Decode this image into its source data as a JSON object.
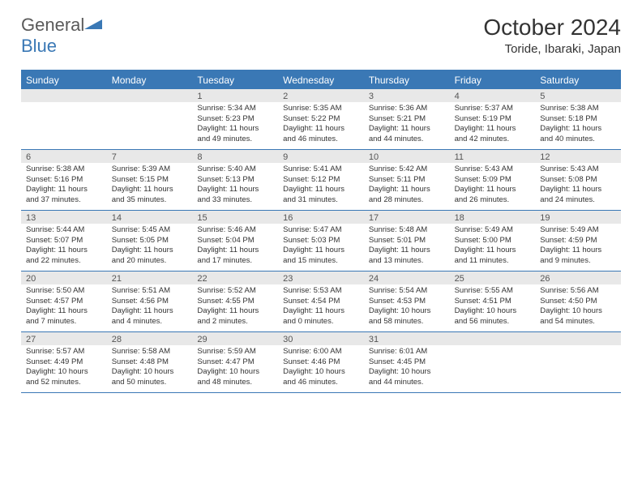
{
  "logo": {
    "word1": "General",
    "word2": "Blue"
  },
  "title": "October 2024",
  "location": "Toride, Ibaraki, Japan",
  "dayNames": [
    "Sunday",
    "Monday",
    "Tuesday",
    "Wednesday",
    "Thursday",
    "Friday",
    "Saturday"
  ],
  "colors": {
    "headerBlue": "#3a78b5",
    "rowGray": "#e8e8e8",
    "text": "#333333",
    "logoGray": "#5a5a5a"
  },
  "layout": {
    "startDayOfWeek": 2,
    "daysInMonth": 31,
    "cols": 7,
    "rows": 5
  },
  "typography": {
    "monthTitleSize": 28,
    "locationSize": 15,
    "dayHeaderSize": 12,
    "dayNumSize": 11,
    "bodySize": 9.5
  },
  "labels": {
    "sunrise": "Sunrise:",
    "sunset": "Sunset:",
    "daylight": "Daylight:"
  },
  "days": [
    {
      "n": 1,
      "sunrise": "5:34 AM",
      "sunset": "5:23 PM",
      "daylight": "11 hours and 49 minutes."
    },
    {
      "n": 2,
      "sunrise": "5:35 AM",
      "sunset": "5:22 PM",
      "daylight": "11 hours and 46 minutes."
    },
    {
      "n": 3,
      "sunrise": "5:36 AM",
      "sunset": "5:21 PM",
      "daylight": "11 hours and 44 minutes."
    },
    {
      "n": 4,
      "sunrise": "5:37 AM",
      "sunset": "5:19 PM",
      "daylight": "11 hours and 42 minutes."
    },
    {
      "n": 5,
      "sunrise": "5:38 AM",
      "sunset": "5:18 PM",
      "daylight": "11 hours and 40 minutes."
    },
    {
      "n": 6,
      "sunrise": "5:38 AM",
      "sunset": "5:16 PM",
      "daylight": "11 hours and 37 minutes."
    },
    {
      "n": 7,
      "sunrise": "5:39 AM",
      "sunset": "5:15 PM",
      "daylight": "11 hours and 35 minutes."
    },
    {
      "n": 8,
      "sunrise": "5:40 AM",
      "sunset": "5:13 PM",
      "daylight": "11 hours and 33 minutes."
    },
    {
      "n": 9,
      "sunrise": "5:41 AM",
      "sunset": "5:12 PM",
      "daylight": "11 hours and 31 minutes."
    },
    {
      "n": 10,
      "sunrise": "5:42 AM",
      "sunset": "5:11 PM",
      "daylight": "11 hours and 28 minutes."
    },
    {
      "n": 11,
      "sunrise": "5:43 AM",
      "sunset": "5:09 PM",
      "daylight": "11 hours and 26 minutes."
    },
    {
      "n": 12,
      "sunrise": "5:43 AM",
      "sunset": "5:08 PM",
      "daylight": "11 hours and 24 minutes."
    },
    {
      "n": 13,
      "sunrise": "5:44 AM",
      "sunset": "5:07 PM",
      "daylight": "11 hours and 22 minutes."
    },
    {
      "n": 14,
      "sunrise": "5:45 AM",
      "sunset": "5:05 PM",
      "daylight": "11 hours and 20 minutes."
    },
    {
      "n": 15,
      "sunrise": "5:46 AM",
      "sunset": "5:04 PM",
      "daylight": "11 hours and 17 minutes."
    },
    {
      "n": 16,
      "sunrise": "5:47 AM",
      "sunset": "5:03 PM",
      "daylight": "11 hours and 15 minutes."
    },
    {
      "n": 17,
      "sunrise": "5:48 AM",
      "sunset": "5:01 PM",
      "daylight": "11 hours and 13 minutes."
    },
    {
      "n": 18,
      "sunrise": "5:49 AM",
      "sunset": "5:00 PM",
      "daylight": "11 hours and 11 minutes."
    },
    {
      "n": 19,
      "sunrise": "5:49 AM",
      "sunset": "4:59 PM",
      "daylight": "11 hours and 9 minutes."
    },
    {
      "n": 20,
      "sunrise": "5:50 AM",
      "sunset": "4:57 PM",
      "daylight": "11 hours and 7 minutes."
    },
    {
      "n": 21,
      "sunrise": "5:51 AM",
      "sunset": "4:56 PM",
      "daylight": "11 hours and 4 minutes."
    },
    {
      "n": 22,
      "sunrise": "5:52 AM",
      "sunset": "4:55 PM",
      "daylight": "11 hours and 2 minutes."
    },
    {
      "n": 23,
      "sunrise": "5:53 AM",
      "sunset": "4:54 PM",
      "daylight": "11 hours and 0 minutes."
    },
    {
      "n": 24,
      "sunrise": "5:54 AM",
      "sunset": "4:53 PM",
      "daylight": "10 hours and 58 minutes."
    },
    {
      "n": 25,
      "sunrise": "5:55 AM",
      "sunset": "4:51 PM",
      "daylight": "10 hours and 56 minutes."
    },
    {
      "n": 26,
      "sunrise": "5:56 AM",
      "sunset": "4:50 PM",
      "daylight": "10 hours and 54 minutes."
    },
    {
      "n": 27,
      "sunrise": "5:57 AM",
      "sunset": "4:49 PM",
      "daylight": "10 hours and 52 minutes."
    },
    {
      "n": 28,
      "sunrise": "5:58 AM",
      "sunset": "4:48 PM",
      "daylight": "10 hours and 50 minutes."
    },
    {
      "n": 29,
      "sunrise": "5:59 AM",
      "sunset": "4:47 PM",
      "daylight": "10 hours and 48 minutes."
    },
    {
      "n": 30,
      "sunrise": "6:00 AM",
      "sunset": "4:46 PM",
      "daylight": "10 hours and 46 minutes."
    },
    {
      "n": 31,
      "sunrise": "6:01 AM",
      "sunset": "4:45 PM",
      "daylight": "10 hours and 44 minutes."
    }
  ]
}
